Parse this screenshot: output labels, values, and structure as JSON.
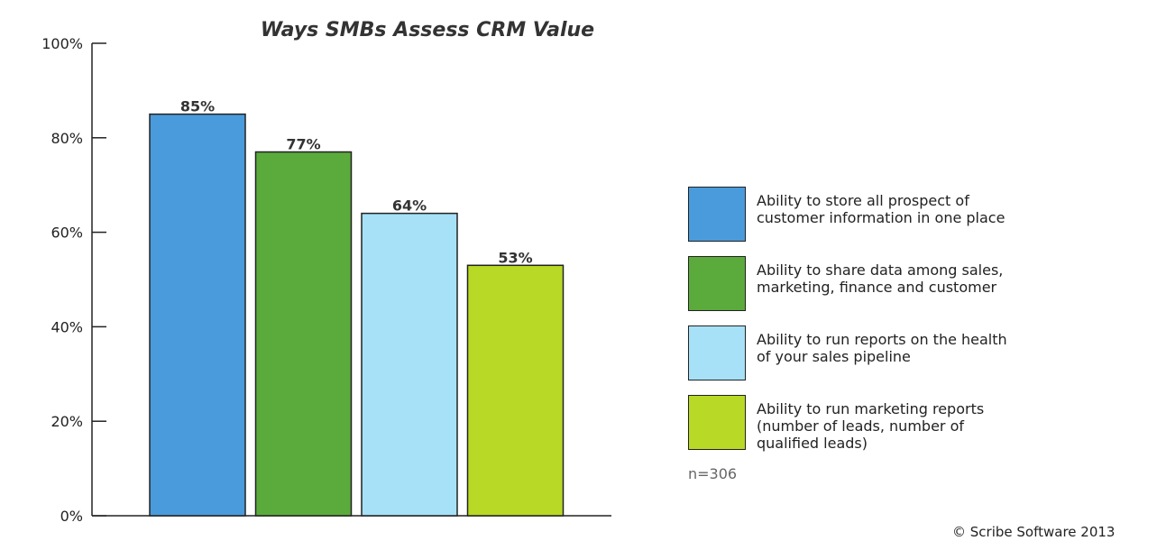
{
  "chart_data": {
    "type": "bar",
    "title": "Ways SMBs Assess CRM Value",
    "categories": [
      "Ability to store all prospect of\ncustomer information in one place",
      "Ability to share data among sales,\nmarketing, finance and customer",
      "Ability to run reports on the health\nof your sales pipeline",
      "Ability to run marketing reports\n(number of leads, number of\n qualified leads)"
    ],
    "values": [
      85,
      77,
      64,
      53
    ],
    "data_labels": [
      "85%",
      "77%",
      "64%",
      "53%"
    ],
    "colors": [
      "#4a9bdc",
      "#5aab3c",
      "#a6e1f7",
      "#b8d925"
    ],
    "ylim": [
      0,
      100
    ],
    "yticks": [
      {
        "value": 0,
        "label": "0%"
      },
      {
        "value": 20,
        "label": "20%"
      },
      {
        "value": 40,
        "label": "40%"
      },
      {
        "value": 60,
        "label": "60%"
      },
      {
        "value": 80,
        "label": "80%"
      },
      {
        "value": 100,
        "label": "100%"
      }
    ],
    "xlabel": "",
    "ylabel": "",
    "grid": false,
    "legend": "right"
  },
  "note": "n=306",
  "copyright": "© Scribe Software 2013"
}
